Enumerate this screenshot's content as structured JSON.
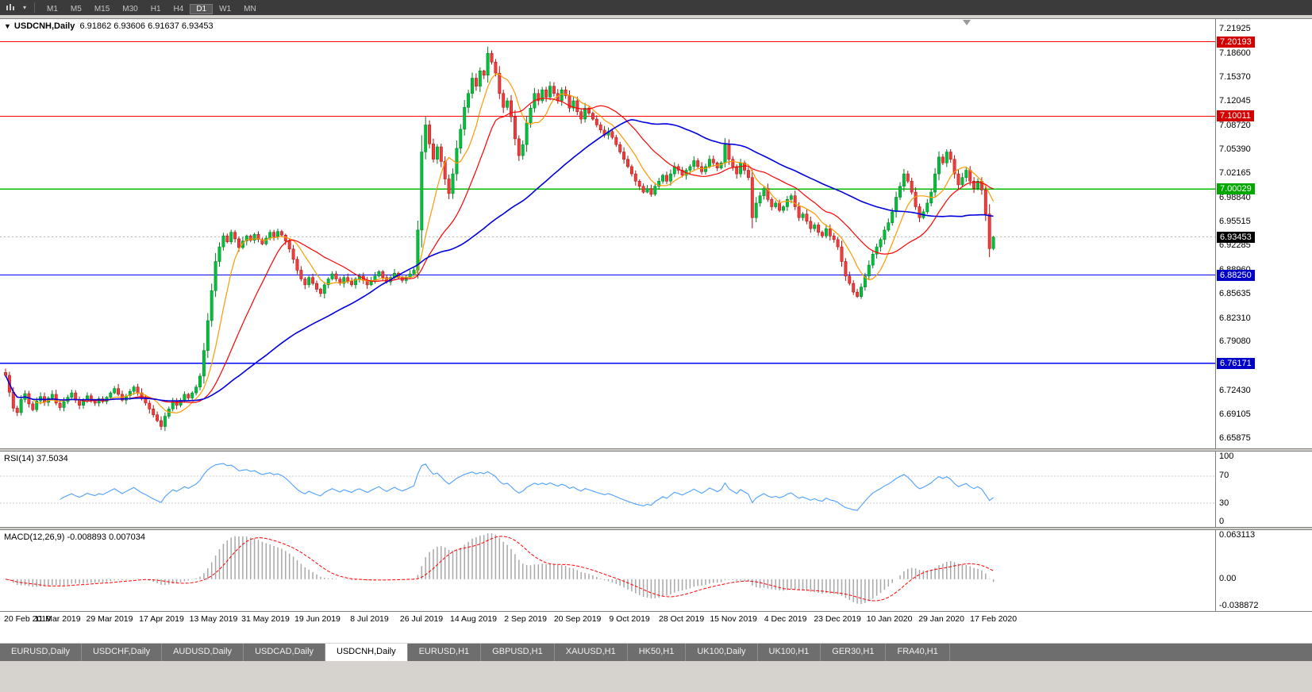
{
  "toolbar": {
    "timeframes": [
      "M1",
      "M5",
      "M15",
      "M30",
      "H1",
      "H4",
      "D1",
      "W1",
      "MN"
    ],
    "active_timeframe": "D1"
  },
  "chart": {
    "symbol": "USDCNH,Daily",
    "ohlc": "6.91862 6.93606 6.91637 6.93453"
  },
  "price_axis": {
    "ticks": [
      "7.21925",
      "7.18600",
      "7.15370",
      "7.12045",
      "7.08720",
      "7.05390",
      "7.02165",
      "6.98840",
      "6.95515",
      "6.92285",
      "6.88960",
      "6.85635",
      "6.82310",
      "6.79080",
      "6.75755",
      "6.72430",
      "6.69105",
      "6.65875"
    ],
    "badges": [
      {
        "text": "7.20193",
        "value": 7.20193,
        "bg": "#d20000",
        "line_color": "#ff0000",
        "line_width": 1,
        "line_dash": ""
      },
      {
        "text": "7.10011",
        "value": 7.10011,
        "bg": "#d20000",
        "line_color": "#ff0000",
        "line_width": 1,
        "line_dash": ""
      },
      {
        "text": "7.00029",
        "value": 7.00029,
        "bg": "#00a800",
        "line_color": "#00c000",
        "line_width": 1.4,
        "line_dash": ""
      },
      {
        "text": "6.93453",
        "value": 6.93453,
        "bg": "#000000",
        "line_color": "#b8b8b8",
        "line_width": 1,
        "line_dash": "2 3"
      },
      {
        "text": "6.88250",
        "value": 6.8825,
        "bg": "#0000c8",
        "line_color": "#0000ff",
        "line_width": 1.4,
        "line_dash": ""
      },
      {
        "text": "6.76171",
        "value": 6.76171,
        "bg": "#0000c8",
        "line_color": "#0000ff",
        "line_width": 1.4,
        "line_dash": ""
      }
    ]
  },
  "rsi": {
    "name": "RSI(14)",
    "value": "37.5034",
    "axis": [
      {
        "text": "100",
        "value": 100
      },
      {
        "text": "70",
        "value": 70
      },
      {
        "text": "30",
        "value": 30
      },
      {
        "text": "0",
        "value": 0
      }
    ],
    "dashed_levels": [
      70,
      30
    ],
    "line_color": "#4da0ff"
  },
  "macd": {
    "name": "MACD(12,26,9)",
    "values": "-0.008893 0.007034",
    "axis": [
      {
        "text": "0.063113",
        "value": 0.063113
      },
      {
        "text": "0.00",
        "value": 0
      },
      {
        "text": "-0.038872",
        "value": -0.038872
      }
    ],
    "histogram_color": "#a8a8a8",
    "signal_color": "#ff0000"
  },
  "tabs": {
    "items": [
      "EURUSD,Daily",
      "USDCHF,Daily",
      "AUDUSD,Daily",
      "USDCAD,Daily",
      "USDCNH,Daily",
      "EURUSD,H1",
      "GBPUSD,H1",
      "XAUUSD,H1",
      "HK50,H1",
      "UK100,Daily",
      "UK100,H1",
      "GER30,H1",
      "FRA40,H1"
    ],
    "active": "USDCNH,Daily"
  },
  "chart_data": {
    "type": "candlestick",
    "symbol": "USDCNH",
    "timeframe": "Daily",
    "title": "USDCNH,Daily",
    "ylim": [
      6.65875,
      7.21925
    ],
    "current_ohlc": {
      "open": 6.91862,
      "high": 6.93606,
      "low": 6.91637,
      "close": 6.93453
    },
    "colors": {
      "up": "#00c23a",
      "up_border": "#067a26",
      "down": "#f23b3b",
      "down_border": "#a31414"
    },
    "x_labels": [
      "20 Feb 2019",
      "11 Mar 2019",
      "29 Mar 2019",
      "17 Apr 2019",
      "13 May 2019",
      "31 May 2019",
      "19 Jun 2019",
      "8 Jul 2019",
      "26 Jul 2019",
      "14 Aug 2019",
      "2 Sep 2019",
      "20 Sep 2019",
      "9 Oct 2019",
      "28 Oct 2019",
      "15 Nov 2019",
      "4 Dec 2019",
      "23 Dec 2019",
      "10 Jan 2020",
      "29 Jan 2020",
      "17 Feb 2020"
    ],
    "indicators": {
      "moving_averages": [
        {
          "period": 8,
          "color": "#ff9a00",
          "width": 1.2
        },
        {
          "period": 20,
          "color": "#ff0000",
          "width": 1.2
        },
        {
          "period": 55,
          "color": "#0000dd",
          "width": 1.6
        }
      ],
      "rsi_period": 14,
      "macd_params": [
        12,
        26,
        9
      ]
    },
    "horizontal_lines": [
      {
        "value": 7.20193,
        "color": "red"
      },
      {
        "value": 7.10011,
        "color": "red"
      },
      {
        "value": 7.00029,
        "color": "green"
      },
      {
        "value": 6.8825,
        "color": "blue"
      },
      {
        "value": 6.76171,
        "color": "blue"
      }
    ],
    "closes": [
      6.745,
      6.722,
      6.7,
      6.694,
      6.712,
      6.72,
      6.706,
      6.698,
      6.71,
      6.716,
      6.708,
      6.714,
      6.719,
      6.707,
      6.701,
      6.709,
      6.715,
      6.721,
      6.711,
      6.704,
      6.71,
      6.717,
      6.711,
      6.707,
      6.713,
      6.709,
      6.715,
      6.721,
      6.727,
      6.719,
      6.711,
      6.717,
      6.723,
      6.729,
      6.721,
      6.713,
      6.707,
      6.699,
      6.691,
      6.683,
      6.675,
      6.689,
      6.699,
      6.709,
      6.704,
      6.711,
      6.719,
      6.714,
      6.721,
      6.729,
      6.744,
      6.779,
      6.82,
      6.861,
      6.901,
      6.921,
      6.936,
      6.928,
      6.941,
      6.932,
      6.92,
      6.929,
      6.936,
      6.93,
      6.938,
      6.931,
      6.925,
      6.933,
      6.941,
      6.935,
      6.942,
      6.937,
      6.929,
      6.918,
      6.904,
      6.889,
      6.877,
      6.869,
      6.879,
      6.871,
      6.863,
      6.857,
      6.869,
      6.877,
      6.884,
      6.877,
      6.871,
      6.879,
      6.874,
      6.869,
      6.877,
      6.881,
      6.875,
      6.869,
      6.875,
      6.881,
      6.887,
      6.879,
      6.873,
      6.879,
      6.885,
      6.879,
      6.875,
      6.879,
      6.884,
      6.889,
      6.944,
      7.051,
      7.088,
      7.062,
      7.041,
      7.058,
      7.038,
      7.014,
      6.994,
      7.021,
      7.056,
      7.082,
      7.112,
      7.131,
      7.152,
      7.141,
      7.162,
      7.156,
      7.186,
      7.174,
      7.159,
      7.131,
      7.112,
      7.121,
      7.099,
      7.069,
      7.046,
      7.061,
      7.091,
      7.111,
      7.131,
      7.121,
      7.136,
      7.126,
      7.141,
      7.131,
      7.121,
      7.136,
      7.128,
      7.111,
      7.121,
      7.106,
      7.096,
      7.111,
      7.104,
      7.096,
      7.088,
      7.081,
      7.074,
      7.079,
      7.071,
      7.061,
      7.051,
      7.041,
      7.031,
      7.021,
      7.011,
      7.004,
      6.996,
      7.001,
      6.993,
      7.004,
      7.011,
      7.019,
      7.011,
      7.021,
      7.031,
      7.026,
      7.019,
      7.026,
      7.031,
      7.039,
      7.031,
      7.024,
      7.031,
      7.041,
      7.036,
      7.029,
      7.036,
      7.061,
      7.041,
      7.031,
      7.021,
      7.036,
      7.026,
      7.016,
      6.961,
      6.981,
      6.991,
      7.001,
      6.986,
      6.976,
      6.981,
      6.971,
      6.976,
      6.986,
      6.991,
      6.976,
      6.961,
      6.966,
      6.956,
      6.946,
      6.951,
      6.941,
      6.936,
      6.946,
      6.936,
      6.931,
      6.921,
      6.901,
      6.881,
      6.871,
      6.859,
      6.853,
      6.866,
      6.881,
      6.896,
      6.911,
      6.921,
      6.931,
      6.944,
      6.954,
      6.969,
      6.989,
      7.004,
      7.021,
      7.011,
      6.996,
      6.976,
      6.961,
      6.969,
      6.981,
      6.996,
      7.021,
      7.044,
      7.036,
      7.051,
      7.041,
      7.021,
      7.006,
      7.016,
      7.026,
      7.011,
      7.001,
      7.011,
      6.999,
      6.966,
      6.9186,
      6.93453
    ]
  }
}
